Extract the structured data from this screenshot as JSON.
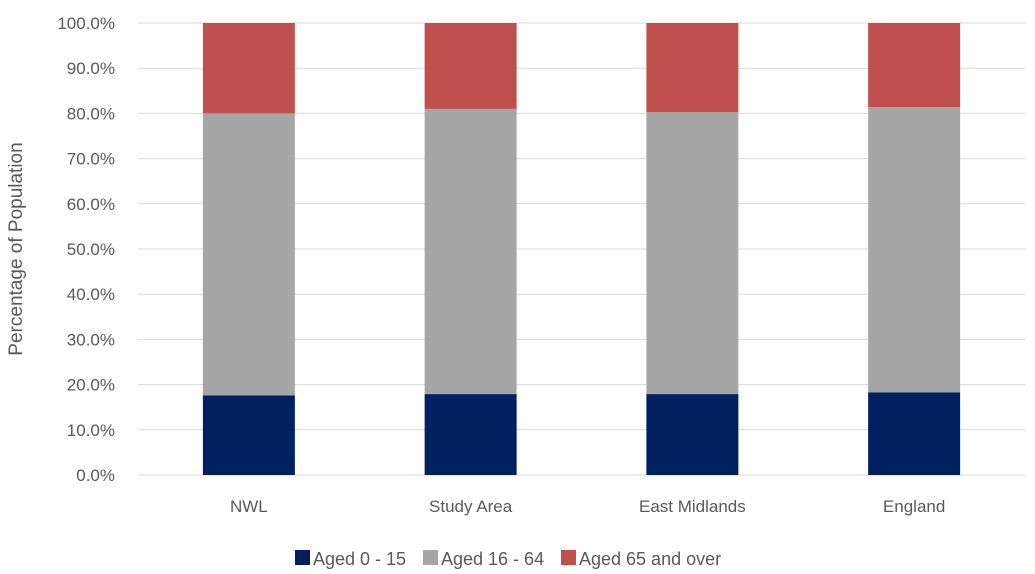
{
  "chart_data": {
    "type": "bar",
    "stacked": true,
    "title": "",
    "xlabel": "",
    "ylabel": "Percentage of Population",
    "ylim": [
      0,
      100
    ],
    "yticks": [
      "0.0%",
      "10.0%",
      "20.0%",
      "30.0%",
      "40.0%",
      "50.0%",
      "60.0%",
      "70.0%",
      "80.0%",
      "90.0%",
      "100.0%"
    ],
    "categories": [
      "NWL",
      "Study Area",
      "East Midlands",
      "England"
    ],
    "series": [
      {
        "name": "Aged 0 - 15",
        "color": "#002060",
        "values": [
          17.6,
          17.9,
          17.9,
          18.3
        ]
      },
      {
        "name": "Aged 16 - 64",
        "color": "#a6a6a6",
        "values": [
          62.4,
          63.1,
          62.4,
          63.1
        ]
      },
      {
        "name": "Aged 65 and over",
        "color": "#c0504d",
        "values": [
          20.0,
          19.0,
          19.7,
          18.6
        ]
      }
    ],
    "grid": true,
    "legend": "bottom"
  }
}
